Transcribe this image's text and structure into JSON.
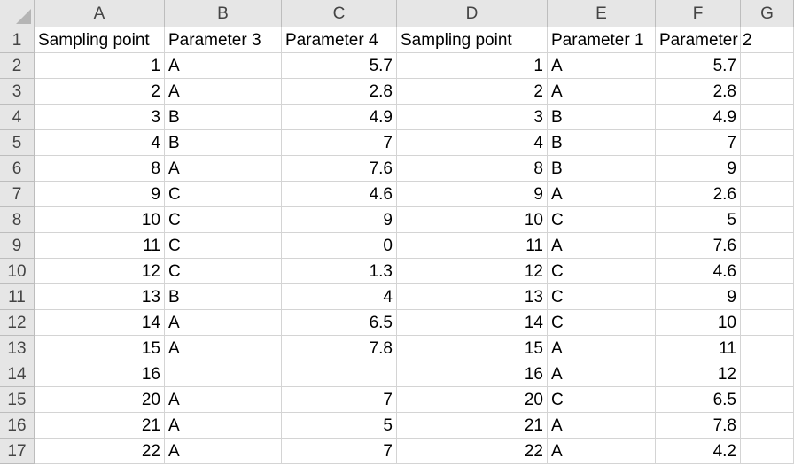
{
  "columns": [
    "A",
    "B",
    "C",
    "D",
    "E",
    "F",
    "G"
  ],
  "rows": [
    {
      "num": "1",
      "cells": [
        "Sampling point",
        "Parameter 3",
        "Parameter 4",
        "Sampling point",
        "Parameter 1",
        "Parameter 2",
        ""
      ]
    },
    {
      "num": "2",
      "cells": [
        "1",
        "A",
        "5.7",
        "1",
        "A",
        "5.7",
        ""
      ]
    },
    {
      "num": "3",
      "cells": [
        "2",
        "A",
        "2.8",
        "2",
        "A",
        "2.8",
        ""
      ]
    },
    {
      "num": "4",
      "cells": [
        "3",
        "B",
        "4.9",
        "3",
        "B",
        "4.9",
        ""
      ]
    },
    {
      "num": "5",
      "cells": [
        "4",
        "B",
        "7",
        "4",
        "B",
        "7",
        ""
      ]
    },
    {
      "num": "6",
      "cells": [
        "8",
        "A",
        "7.6",
        "8",
        "B",
        "9",
        ""
      ]
    },
    {
      "num": "7",
      "cells": [
        "9",
        "C",
        "4.6",
        "9",
        "A",
        "2.6",
        ""
      ]
    },
    {
      "num": "8",
      "cells": [
        "10",
        "C",
        "9",
        "10",
        "C",
        "5",
        ""
      ]
    },
    {
      "num": "9",
      "cells": [
        "11",
        "C",
        "0",
        "11",
        "A",
        "7.6",
        ""
      ]
    },
    {
      "num": "10",
      "cells": [
        "12",
        "C",
        "1.3",
        "12",
        "C",
        "4.6",
        ""
      ]
    },
    {
      "num": "11",
      "cells": [
        "13",
        "B",
        "4",
        "13",
        "C",
        "9",
        ""
      ]
    },
    {
      "num": "12",
      "cells": [
        "14",
        "A",
        "6.5",
        "14",
        "C",
        "10",
        ""
      ]
    },
    {
      "num": "13",
      "cells": [
        "15",
        "A",
        "7.8",
        "15",
        "A",
        "11",
        ""
      ]
    },
    {
      "num": "14",
      "cells": [
        "16",
        "",
        "",
        "16",
        "A",
        "12",
        ""
      ]
    },
    {
      "num": "15",
      "cells": [
        "20",
        "A",
        "7",
        "20",
        "C",
        "6.5",
        ""
      ]
    },
    {
      "num": "16",
      "cells": [
        "21",
        "A",
        "5",
        "21",
        "A",
        "7.8",
        ""
      ]
    },
    {
      "num": "17",
      "cells": [
        "22",
        "A",
        "7",
        "22",
        "A",
        "4.2",
        ""
      ]
    }
  ]
}
